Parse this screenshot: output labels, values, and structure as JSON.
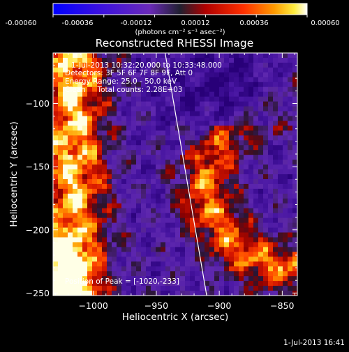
{
  "colorbar": {
    "tick_labels": [
      "-0.00060",
      "-0.00036",
      "-0.00012",
      "0.00012",
      "0.00036",
      "0.00060"
    ],
    "unit_text": "(photons cm⁻² s⁻¹ asec⁻²)"
  },
  "chart_data": {
    "type": "heatmap",
    "title": "Reconstructed RHESSI Image",
    "xlabel": "Heliocentric X (arcsec)",
    "ylabel": "Heliocentric Y (arcsec)",
    "xlim": [
      -1032,
      -838
    ],
    "ylim": [
      -252,
      -60
    ],
    "xticks": [
      -1000,
      -950,
      -900,
      -850
    ],
    "yticks": [
      -100,
      -150,
      -200,
      -250
    ],
    "x_tick_labels": [
      "−1000",
      "−950",
      "−900",
      "−850"
    ],
    "y_tick_labels": [
      "−100",
      "−150",
      "−200",
      "−250"
    ],
    "value_range": [
      -0.0006,
      0.0006
    ],
    "colormap": "blue-purple-red-orange-yellow-white",
    "peak": [
      -1020,
      -233
    ],
    "limb_line": [
      [
        -943,
        -60
      ],
      [
        -910,
        -252
      ]
    ],
    "annotations": {
      "time": "1-Jul-2013 10:32:20.000 to 10:33:48.000",
      "detectors": "Detectors: 3F 5F 6F 7F 8F 9F, Att 0",
      "energy": "Energy Range: 25.0 - 50.0 keV",
      "clean": "Clean     Total counts: 2.28E+03",
      "peak": "Position of Peak = [-1020,-233]"
    }
  },
  "footer": {
    "timestamp": "1-Jul-2013 16:41"
  }
}
